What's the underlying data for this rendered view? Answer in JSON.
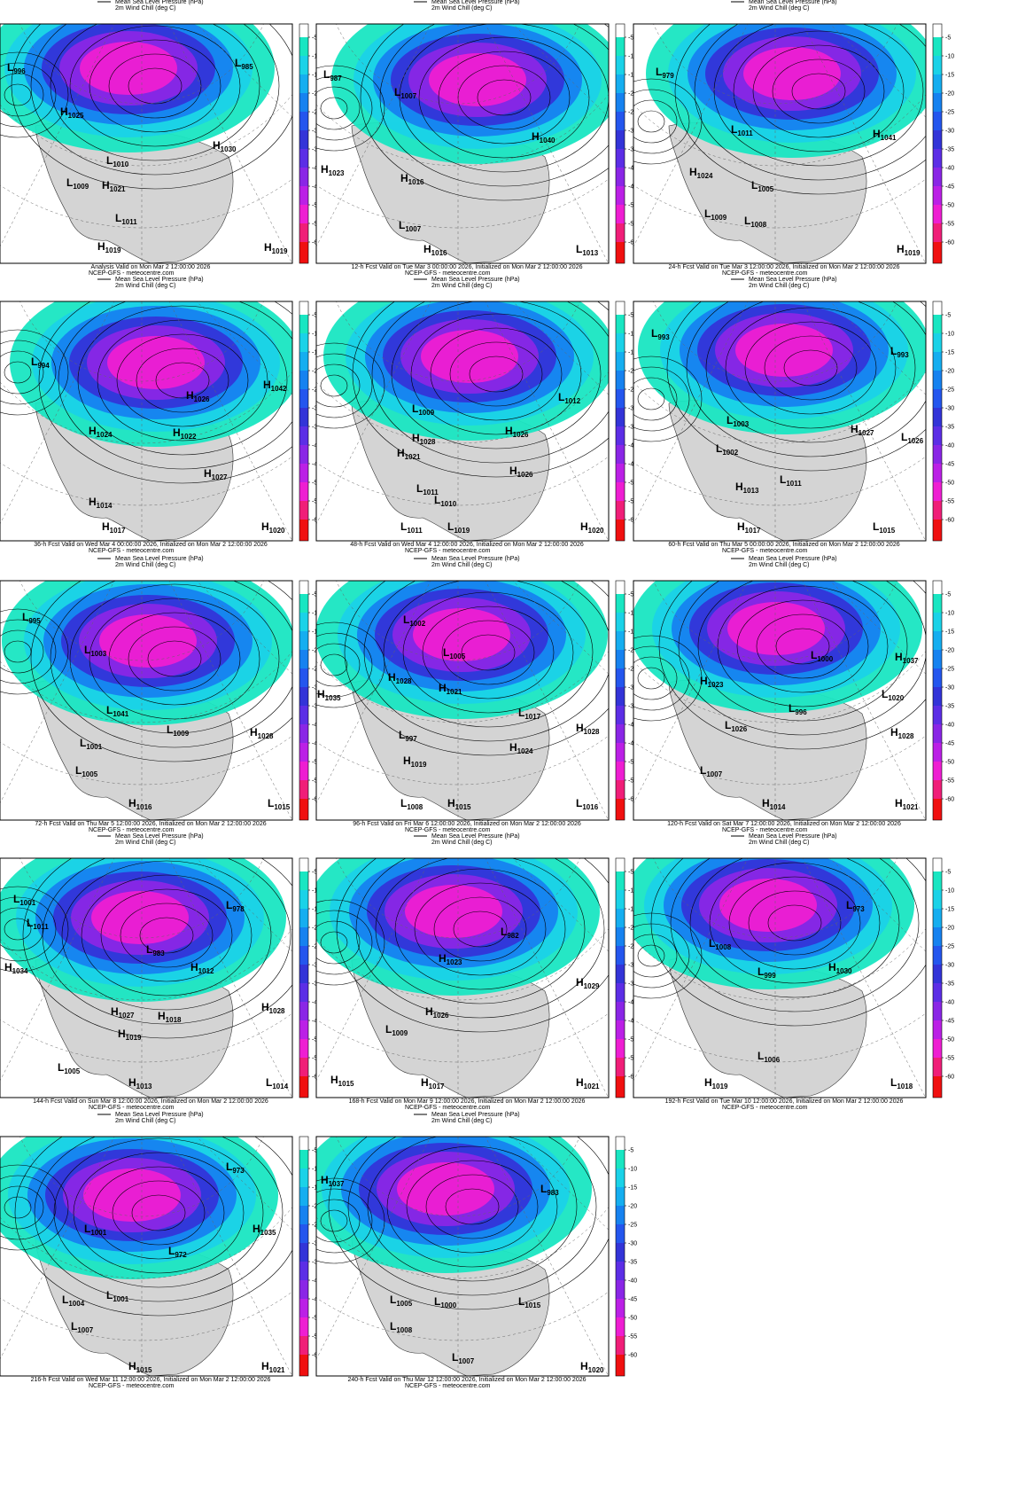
{
  "legend": {
    "pressure": "Mean Sea Level Pressure (hPa)",
    "wind_chill": "2m Wind Chill (deg C)"
  },
  "colorbar": {
    "ticks": [
      -5,
      -10,
      -15,
      -20,
      -25,
      -30,
      -35,
      -40,
      -45,
      -50,
      -55,
      -60
    ],
    "colors": [
      "#ffffff",
      "#19e6c2",
      "#1ad2e8",
      "#15aef0",
      "#1682f0",
      "#2456ee",
      "#3334d8",
      "#5c2ee6",
      "#8a26e6",
      "#bb20e6",
      "#ee1ed2",
      "#f01e78",
      "#f01010"
    ]
  },
  "source": "NCEP-GFS - meteocentre.com",
  "panels": [
    {
      "caption": "Analysis Valid on Mon Mar  2 12:00:00 2026",
      "centers": [
        {
          "letter": "L",
          "value": 996
        },
        {
          "letter": "L",
          "value": 985
        },
        {
          "letter": "H",
          "value": 1025
        },
        {
          "letter": "H",
          "value": 1030
        },
        {
          "letter": "L",
          "value": 1010
        },
        {
          "letter": "L",
          "value": 1009
        },
        {
          "letter": "H",
          "value": 1021
        },
        {
          "letter": "L",
          "value": 1011
        },
        {
          "letter": "H",
          "value": 1019
        },
        {
          "letter": "H",
          "value": 1019
        }
      ]
    },
    {
      "caption": "12-h Fcst Valid on Tue Mar  3 00:00:00 2026, Initialized on Mon Mar  2 12:00:00 2026",
      "centers": [
        {
          "letter": "L",
          "value": 987
        },
        {
          "letter": "L",
          "value": 1007
        },
        {
          "letter": "H",
          "value": 1040
        },
        {
          "letter": "H",
          "value": 1023
        },
        {
          "letter": "H",
          "value": 1016
        },
        {
          "letter": "L",
          "value": 1007
        },
        {
          "letter": "H",
          "value": 1016
        },
        {
          "letter": "L",
          "value": 1013
        }
      ]
    },
    {
      "caption": "24-h Fcst Valid on Tue Mar  3 12:00:00 2026, Initialized on Mon Mar  2 12:00:00 2026",
      "centers": [
        {
          "letter": "L",
          "value": 979
        },
        {
          "letter": "H",
          "value": 1041
        },
        {
          "letter": "L",
          "value": 1011
        },
        {
          "letter": "H",
          "value": 1024
        },
        {
          "letter": "L",
          "value": 1005
        },
        {
          "letter": "L",
          "value": 1009
        },
        {
          "letter": "L",
          "value": 1008
        },
        {
          "letter": "H",
          "value": 1019
        }
      ]
    },
    {
      "caption": "36-h Fcst Valid on Wed Mar  4 00:00:00 2026, Initialized on Mon Mar  2 12:00:00 2026",
      "centers": [
        {
          "letter": "L",
          "value": 994
        },
        {
          "letter": "H",
          "value": 1042
        },
        {
          "letter": "H",
          "value": 1026
        },
        {
          "letter": "H",
          "value": 1024
        },
        {
          "letter": "H",
          "value": 1022
        },
        {
          "letter": "H",
          "value": 1027
        },
        {
          "letter": "H",
          "value": 1014
        },
        {
          "letter": "H",
          "value": 1017
        },
        {
          "letter": "H",
          "value": 1020
        }
      ]
    },
    {
      "caption": "48-h Fcst Valid on Wed Mar  4 12:00:00 2026, Initialized on Mon Mar  2 12:00:00 2026",
      "centers": [
        {
          "letter": "L",
          "value": 1009
        },
        {
          "letter": "L",
          "value": 1012
        },
        {
          "letter": "H",
          "value": 1028
        },
        {
          "letter": "H",
          "value": 1021
        },
        {
          "letter": "H",
          "value": 1026
        },
        {
          "letter": "H",
          "value": 1026
        },
        {
          "letter": "L",
          "value": 1011
        },
        {
          "letter": "L",
          "value": 1010
        },
        {
          "letter": "L",
          "value": 1011
        },
        {
          "letter": "L",
          "value": 1019
        },
        {
          "letter": "H",
          "value": 1020
        }
      ]
    },
    {
      "caption": "60-h Fcst Valid on Thu Mar  5 00:00:00 2026, Initialized on Mon Mar  2 12:00:00 2026",
      "centers": [
        {
          "letter": "L",
          "value": 993
        },
        {
          "letter": "L",
          "value": 993
        },
        {
          "letter": "L",
          "value": 1003
        },
        {
          "letter": "L",
          "value": 1002
        },
        {
          "letter": "H",
          "value": 1027
        },
        {
          "letter": "L",
          "value": 1026
        },
        {
          "letter": "H",
          "value": 1013
        },
        {
          "letter": "L",
          "value": 1011
        },
        {
          "letter": "H",
          "value": 1017
        },
        {
          "letter": "L",
          "value": 1015
        }
      ]
    },
    {
      "caption": "72-h Fcst Valid on Thu Mar  5 12:00:00 2026, Initialized on Mon Mar  2 12:00:00 2026",
      "centers": [
        {
          "letter": "L",
          "value": 995
        },
        {
          "letter": "L",
          "value": 1003
        },
        {
          "letter": "L",
          "value": 1041
        },
        {
          "letter": "L",
          "value": 1009
        },
        {
          "letter": "H",
          "value": 1028
        },
        {
          "letter": "L",
          "value": 1001
        },
        {
          "letter": "L",
          "value": 1005
        },
        {
          "letter": "H",
          "value": 1016
        },
        {
          "letter": "L",
          "value": 1015
        }
      ]
    },
    {
      "caption": "96-h Fcst Valid on Fri Mar  6 12:00:00 2026, Initialized on Mon Mar  2 12:00:00 2026",
      "centers": [
        {
          "letter": "H",
          "value": 1035
        },
        {
          "letter": "L",
          "value": 1002
        },
        {
          "letter": "L",
          "value": 1005
        },
        {
          "letter": "H",
          "value": 1028
        },
        {
          "letter": "H",
          "value": 1021
        },
        {
          "letter": "L",
          "value": 1017
        },
        {
          "letter": "H",
          "value": 1028
        },
        {
          "letter": "L",
          "value": 997
        },
        {
          "letter": "H",
          "value": 1024
        },
        {
          "letter": "H",
          "value": 1019
        },
        {
          "letter": "L",
          "value": 1008
        },
        {
          "letter": "H",
          "value": 1015
        },
        {
          "letter": "L",
          "value": 1016
        }
      ]
    },
    {
      "caption": "120-h Fcst Valid on Sat Mar  7 12:00:00 2026, Initialized on Mon Mar  2 12:00:00 2026",
      "centers": [
        {
          "letter": "L",
          "value": 1020
        },
        {
          "letter": "H",
          "value": 1037
        },
        {
          "letter": "H",
          "value": 1028
        },
        {
          "letter": "L",
          "value": 1000
        },
        {
          "letter": "L",
          "value": 996
        },
        {
          "letter": "H",
          "value": 1023
        },
        {
          "letter": "L",
          "value": 1026
        },
        {
          "letter": "L",
          "value": 1007
        },
        {
          "letter": "H",
          "value": 1014
        },
        {
          "letter": "H",
          "value": 1021
        }
      ]
    },
    {
      "caption": "144-h Fcst Valid on Sun Mar  8 12:00:00 2026, Initialized on Mon Mar  2 12:00:00 2026",
      "centers": [
        {
          "letter": "L",
          "value": 1001
        },
        {
          "letter": "L",
          "value": 1011
        },
        {
          "letter": "H",
          "value": 1034
        },
        {
          "letter": "L",
          "value": 978
        },
        {
          "letter": "L",
          "value": 983
        },
        {
          "letter": "H",
          "value": 1012
        },
        {
          "letter": "H",
          "value": 1028
        },
        {
          "letter": "H",
          "value": 1027
        },
        {
          "letter": "H",
          "value": 1018
        },
        {
          "letter": "H",
          "value": 1019
        },
        {
          "letter": "L",
          "value": 1005
        },
        {
          "letter": "H",
          "value": 1013
        },
        {
          "letter": "L",
          "value": 1014
        }
      ]
    },
    {
      "caption": "168-h Fcst Valid on Mon Mar  9 12:00:00 2026, Initialized on Mon Mar  2 12:00:00 2026",
      "centers": [
        {
          "letter": "L",
          "value": 982
        },
        {
          "letter": "H",
          "value": 1023
        },
        {
          "letter": "H",
          "value": 1029
        },
        {
          "letter": "H",
          "value": 1026
        },
        {
          "letter": "L",
          "value": 1009
        },
        {
          "letter": "H",
          "value": 1015
        },
        {
          "letter": "H",
          "value": 1017
        },
        {
          "letter": "H",
          "value": 1021
        }
      ]
    },
    {
      "caption": "192-h Fcst Valid on Tue Mar 10 12:00:00 2026, Initialized on Mon Mar  2 12:00:00 2026",
      "centers": [
        {
          "letter": "L",
          "value": 973
        },
        {
          "letter": "L",
          "value": 1008
        },
        {
          "letter": "L",
          "value": 999
        },
        {
          "letter": "H",
          "value": 1030
        },
        {
          "letter": "L",
          "value": 1006
        },
        {
          "letter": "H",
          "value": 1019
        },
        {
          "letter": "L",
          "value": 1018
        }
      ]
    },
    {
      "caption": "216-h Fcst Valid on Wed Mar 11 12:00:00 2026, Initialized on Mon Mar  2 12:00:00 2026",
      "centers": [
        {
          "letter": "L",
          "value": 973
        },
        {
          "letter": "H",
          "value": 1035
        },
        {
          "letter": "L",
          "value": 1001
        },
        {
          "letter": "L",
          "value": 972
        },
        {
          "letter": "L",
          "value": 1004
        },
        {
          "letter": "L",
          "value": 1001
        },
        {
          "letter": "L",
          "value": 1007
        },
        {
          "letter": "H",
          "value": 1015
        },
        {
          "letter": "H",
          "value": 1021
        }
      ]
    },
    {
      "caption": "240-h Fcst Valid on Thu Mar 12 12:00:00 2026, Initialized on Mon Mar  2 12:00:00 2026",
      "centers": [
        {
          "letter": "H",
          "value": 1037
        },
        {
          "letter": "L",
          "value": 983
        },
        {
          "letter": "L",
          "value": 1005
        },
        {
          "letter": "L",
          "value": 1000
        },
        {
          "letter": "L",
          "value": 1015
        },
        {
          "letter": "L",
          "value": 1008
        },
        {
          "letter": "L",
          "value": 1007
        },
        {
          "letter": "H",
          "value": 1020
        }
      ]
    }
  ]
}
